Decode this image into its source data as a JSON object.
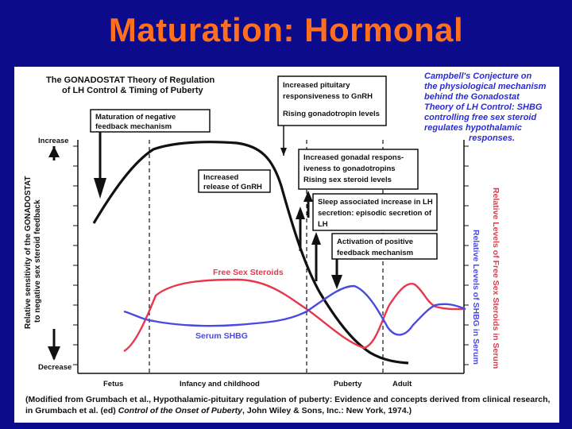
{
  "slide": {
    "title": "Maturation: Hormonal"
  },
  "figure": {
    "title_line1": "The GONADOSTAT Theory of Regulation",
    "title_line2": "of LH Control & Timing of Puberty",
    "campbell_lines": [
      "Campbell's Conjecture on",
      "the physiological mechanism",
      "behind the Gonadostat",
      "Theory of LH Control: SHBG",
      "controlling free sex steroid",
      "regulates hypothalamic",
      "responses."
    ],
    "y_left_label_line1": "Relative sensitivity of the GONADOSTAT",
    "y_left_label_line2": "to negative sex steroid feedback",
    "increase_label": "Increase",
    "decrease_label": "Decrease",
    "y_right_label_1": "Relative Levels of Free Sex Steroids in Serum",
    "y_right_label_2": "Relative Levels of SHBG in Serum",
    "x_labels": {
      "fetus": "Fetus",
      "infancy": "Infancy and childhood",
      "puberty": "Puberty",
      "adult": "Adult"
    },
    "series_labels": {
      "free_sex_steroids": "Free Sex Steroids",
      "serum_shbg": "Serum SHBG"
    },
    "annotations": {
      "pituitary": [
        "Increased pituitary",
        "responsiveness to GnRH",
        "Rising gonadotropin levels"
      ],
      "maturation": [
        "Maturation of negative",
        "feedback mechanism"
      ],
      "gnrh": [
        "Increased",
        "release of GnRH"
      ],
      "gonadal": [
        "Increased gonadal respons-",
        "iveness to gonadotropins",
        "Rising sex steroid levels"
      ],
      "sleep": [
        "Sleep associated increase in LH",
        "secretion: episodic secretion of",
        "LH"
      ],
      "positive": [
        "Activation of positive",
        "feedback mechanism"
      ]
    },
    "caption": {
      "part1": "(Modified from Grumbach et al., Hypothalamic-pituitary regulation of puberty: Evidence and concepts derived from clinical research, in Grumbach et al. (ed) ",
      "italic": "Control of the Onset of Puberty",
      "part2": ", John Wiley & Sons, Inc.: New York, 1974.)"
    },
    "colors": {
      "free_sex_steroids": "#e8364a",
      "serum_shbg": "#4a4ae0",
      "gonadostat": "#111111",
      "campbell": "#2b2bd6"
    }
  }
}
